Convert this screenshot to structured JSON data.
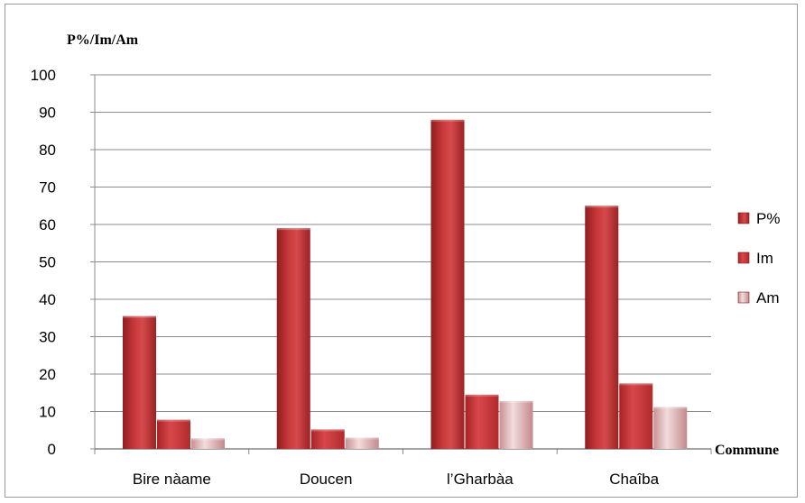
{
  "chart_data": {
    "type": "bar",
    "ylabel": "P%/Im/Am",
    "xlabel": "Commune",
    "categories": [
      "Bire nàame",
      "Doucen",
      "l’Gharbàa",
      "Chaîba"
    ],
    "series": [
      {
        "name": "P%",
        "values": [
          35.5,
          59,
          88,
          65
        ]
      },
      {
        "name": "Im",
        "values": [
          7.8,
          5.2,
          14.5,
          17.5
        ]
      },
      {
        "name": "Am",
        "values": [
          2.8,
          3.0,
          12.8,
          11.2
        ]
      }
    ],
    "ylim": [
      0,
      100
    ],
    "yticks": [
      0,
      10,
      20,
      30,
      40,
      50,
      60,
      70,
      80,
      90,
      100
    ],
    "grid": true,
    "legend": "right"
  },
  "colors": {
    "p_pct": "#b8282a",
    "im": "#c9302f",
    "am": "#d9a9ab",
    "grid": "#8c8c8c"
  }
}
